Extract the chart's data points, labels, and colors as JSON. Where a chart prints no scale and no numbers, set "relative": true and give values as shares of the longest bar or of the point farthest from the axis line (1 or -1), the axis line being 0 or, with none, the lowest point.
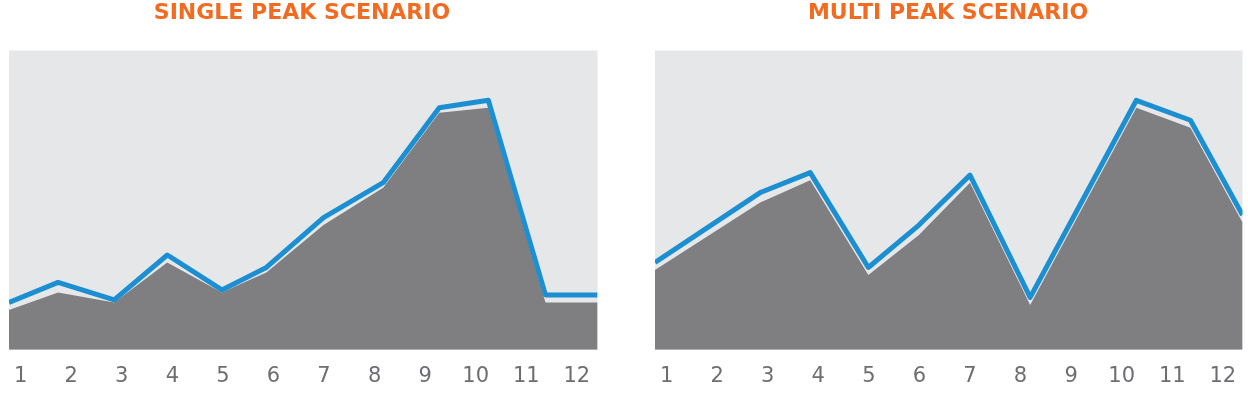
{
  "chart_data": [
    {
      "type": "area",
      "title": "SINGLE PEAK SCENARIO",
      "relative": true,
      "marker": "none",
      "grid": false,
      "legend": false,
      "tick_labels": "x",
      "xlim": [
        0.77,
        12.41
      ],
      "xticks": [
        1,
        2,
        3,
        4,
        5,
        6,
        7,
        8,
        9,
        10,
        11,
        12
      ],
      "series": [
        {
          "type": "area",
          "color": "#7f7e80",
          "x": [
            0.77,
            1.74,
            2.85,
            3.9,
            4.98,
            5.86,
            6.99,
            8.17,
            9.28,
            10.25,
            11.38,
            12.41
          ],
          "values": [
            0.16,
            0.23,
            0.19,
            0.35,
            0.23,
            0.31,
            0.5,
            0.65,
            0.95,
            0.97,
            0.19,
            0.19
          ]
        },
        {
          "type": "line",
          "color": "#1b8fd2",
          "x": [
            0.77,
            1.74,
            2.85,
            3.9,
            4.98,
            5.86,
            6.99,
            8.17,
            9.28,
            10.25,
            11.38,
            12.41
          ],
          "values": [
            0.19,
            0.27,
            0.2,
            0.38,
            0.24,
            0.33,
            0.53,
            0.67,
            0.97,
            1,
            0.22,
            0.22
          ]
        }
      ]
    },
    {
      "type": "area",
      "title": "MULTI PEAK SCENARIO",
      "relative": true,
      "marker": "none",
      "grid": false,
      "legend": false,
      "tick_labels": "x",
      "xlim": [
        0.77,
        12.39
      ],
      "xticks": [
        1,
        2,
        3,
        4,
        5,
        6,
        7,
        8,
        9,
        10,
        11,
        12
      ],
      "series": [
        {
          "type": "area",
          "color": "#7f7e80",
          "x": [
            0.77,
            2.85,
            3.84,
            4.99,
            5.99,
            7.0,
            8.19,
            10.29,
            11.36,
            12.39
          ],
          "values": [
            0.32,
            0.59,
            0.68,
            0.3,
            0.46,
            0.67,
            0.18,
            0.97,
            0.89,
            0.51
          ]
        },
        {
          "type": "line",
          "color": "#1b8fd2",
          "x": [
            0.77,
            2.85,
            3.84,
            4.99,
            5.99,
            7.0,
            8.19,
            10.29,
            11.36,
            12.39
          ],
          "values": [
            0.35,
            0.63,
            0.71,
            0.33,
            0.5,
            0.7,
            0.21,
            1,
            0.92,
            0.54
          ]
        }
      ]
    }
  ]
}
